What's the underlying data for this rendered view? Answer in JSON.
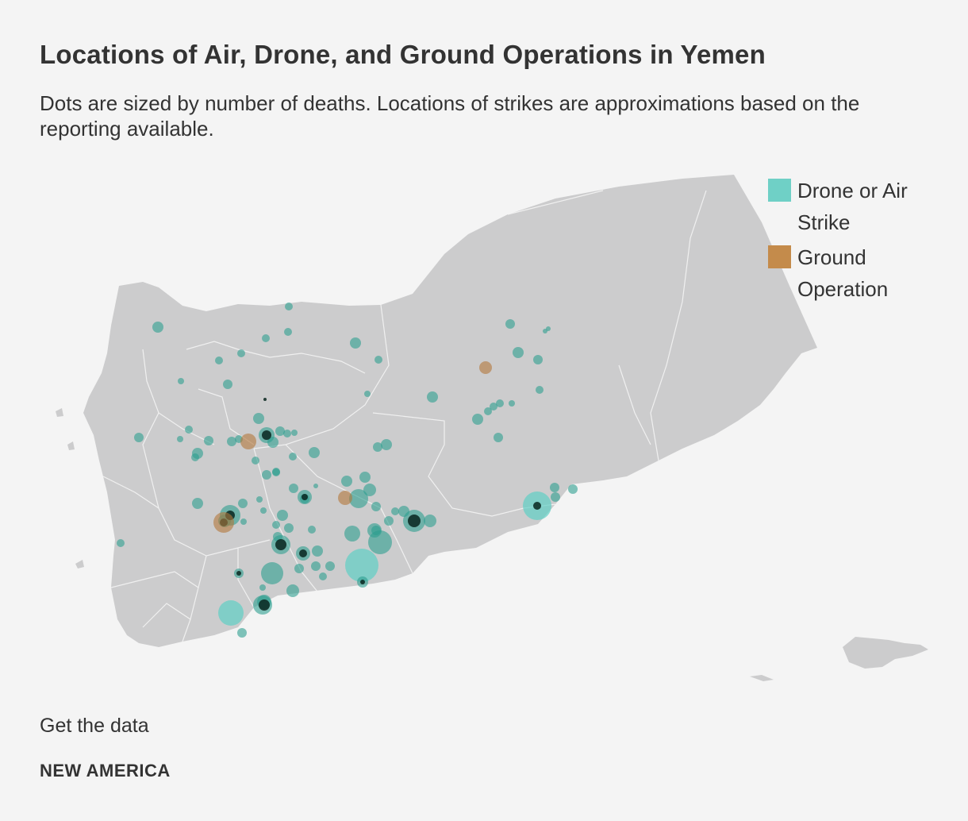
{
  "title": "Locations of Air, Drone, and Ground Operations in Yemen",
  "subtitle": "Dots are sized by number of deaths. Locations of strikes are approximations based on the reporting available.",
  "legend": [
    {
      "label": "Drone or Air Strike",
      "color": "#6fd0c6",
      "key": "air"
    },
    {
      "label": "Ground Operation",
      "color": "#c48b4b",
      "key": "ground"
    }
  ],
  "colors": {
    "land": "#cccccd",
    "border": "#f4f4f4",
    "air_fill": "#2d9f8f",
    "air_fill_big": "#5fcfc4",
    "ground_fill": "#b3773a",
    "background": "#f4f4f4"
  },
  "links": {
    "get_data": "Get the data"
  },
  "brand": "NEW AMERICA"
}
